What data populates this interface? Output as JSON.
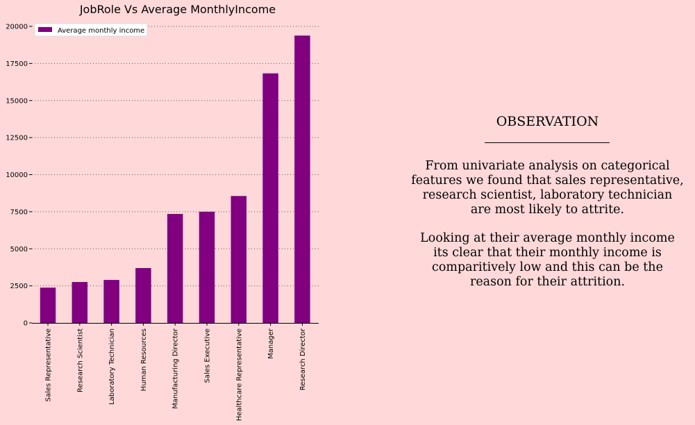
{
  "chart_data": {
    "type": "bar",
    "title": "JobRole Vs Average MonthlyIncome",
    "xlabel": "",
    "ylabel": "",
    "categories": [
      "Sales Representative",
      "Research Scientist",
      "Laboratory Technician",
      "Human Resources",
      "Manufacturing Director",
      "Sales Executive",
      "Healthcare Representative",
      "Manager",
      "Research Director"
    ],
    "series": [
      {
        "name": "Average monthly income",
        "values": [
          2380,
          2760,
          2900,
          3700,
          7350,
          7500,
          8560,
          16830,
          19380
        ],
        "color": "#800080"
      }
    ],
    "ylim": [
      0,
      20000
    ],
    "yticks": [
      "0",
      "2500",
      "5000",
      "7500",
      "10000",
      "12500",
      "15000",
      "17500",
      "20000"
    ],
    "grid": "horizontal dotted",
    "legend_position": "top-left"
  },
  "observation": {
    "heading": "OBSERVATION",
    "paragraph1": [
      "From univariate analysis on categorical",
      "features we found that sales representative,",
      "research scientist, laboratory technician",
      "are most likely to attrite."
    ],
    "paragraph2": [
      "Looking at their average monthly income",
      "its clear that their monthly income is",
      "comparitively low and this can be the",
      "reason for their attrition."
    ]
  }
}
